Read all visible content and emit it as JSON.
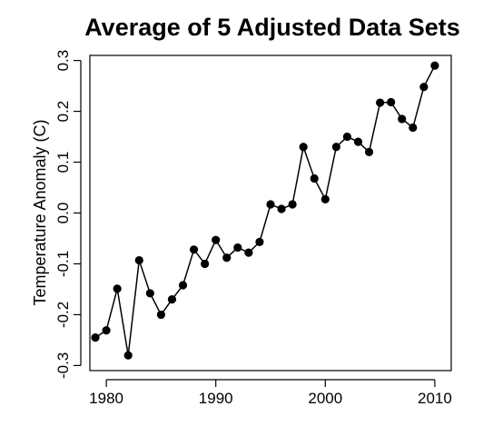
{
  "chart_data": {
    "type": "line",
    "title": "Average of 5 Adjusted Data Sets",
    "xlabel": "",
    "ylabel": "Temperature Anomaly (C)",
    "xlim": [
      1978.5,
      2011.5
    ],
    "ylim": [
      -0.31,
      0.31
    ],
    "x_ticks": [
      1980,
      1990,
      2000,
      2010
    ],
    "y_ticks": [
      -0.3,
      -0.2,
      -0.1,
      0.0,
      0.1,
      0.2,
      0.3
    ],
    "y_tick_labels": [
      "-0.3",
      "-0.2",
      "-0.1",
      "0.0",
      "0.1",
      "0.2",
      "0.3"
    ],
    "grid": false,
    "markers": "filled-circle",
    "series": [
      {
        "x": [
          1979,
          1980,
          1981,
          1982,
          1983,
          1984,
          1985,
          1986,
          1987,
          1988,
          1989,
          1990,
          1991,
          1992,
          1993,
          1994,
          1995,
          1996,
          1997,
          1998,
          1999,
          2000,
          2001,
          2002,
          2003,
          2004,
          2005,
          2006,
          2007,
          2008,
          2009,
          2010
        ],
        "values": [
          -0.245,
          -0.231,
          -0.149,
          -0.28,
          -0.093,
          -0.158,
          -0.2,
          -0.17,
          -0.142,
          -0.072,
          -0.1,
          -0.053,
          -0.088,
          -0.068,
          -0.078,
          -0.057,
          0.017,
          0.008,
          0.017,
          0.13,
          0.068,
          0.027,
          0.13,
          0.15,
          0.14,
          0.12,
          0.217,
          0.218,
          0.185,
          0.168,
          0.248,
          0.29
        ]
      }
    ]
  }
}
